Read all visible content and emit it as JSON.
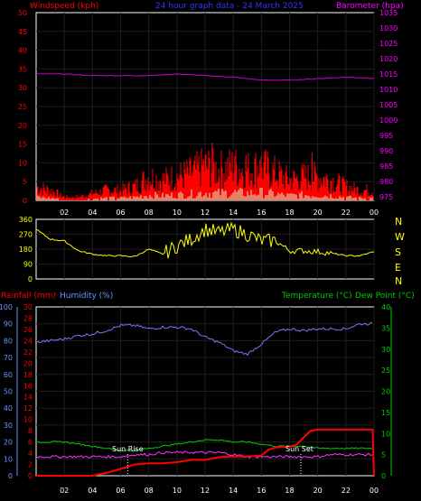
{
  "header": {
    "left_label": "Windspeed (kph)",
    "center_title": "24 hour graph data - 24 March 2025",
    "right_label": "Barometer (hpa)"
  },
  "colors": {
    "wind": "#ff0000",
    "gust": "#ff0000",
    "avg_wind": "#ccffcc",
    "barometer": "#cc00cc",
    "direction": "#ffff00",
    "humidity": "#7777ff",
    "rain": "#ff0000",
    "temperature": "#00cc00",
    "dewpoint": "#ff33ff",
    "axis_left": "#ff0000",
    "axis_right": "#ff00ff",
    "axis_grn": "#00cc00",
    "axis_blue": "#6699ff",
    "title_blue": "#3333ff",
    "grid": "#1e1e1e",
    "frame": "#ffffff"
  },
  "time_ticks": [
    "02",
    "04",
    "06",
    "08",
    "10",
    "12",
    "14",
    "16",
    "18",
    "20",
    "22",
    "00"
  ],
  "wind_panel": {
    "speed_ticks": [
      "0",
      "5",
      "10",
      "15",
      "20",
      "25",
      "30",
      "35",
      "40",
      "45",
      "50"
    ],
    "baro_ticks": [
      "975",
      "980",
      "985",
      "990",
      "995",
      "1000",
      "1005",
      "1010",
      "1015",
      "1020",
      "1025",
      "1030",
      "1035"
    ]
  },
  "dir_panel": {
    "deg_ticks": [
      "0",
      "90",
      "180",
      "270",
      "360"
    ],
    "compass": [
      "N",
      "W",
      "S",
      "E",
      "N"
    ]
  },
  "bottom_panel": {
    "left_labels": {
      "rain": "Rainfall (mm)",
      "humidity": "Humidity (%)"
    },
    "right_labels": {
      "temp": "Temperature (°C)",
      "dew": "Dew Point (°C)"
    },
    "humidity_ticks": [
      "0",
      "10",
      "20",
      "30",
      "40",
      "50",
      "60",
      "70",
      "80",
      "90",
      "100"
    ],
    "rain_ticks": [
      "0",
      "2",
      "4",
      "6",
      "8",
      "10",
      "12",
      "14",
      "16",
      "18",
      "20",
      "22",
      "24",
      "26",
      "28",
      "30"
    ],
    "temp_ticks": [
      "0",
      "5",
      "10",
      "15",
      "20",
      "25",
      "30",
      "35",
      "40"
    ],
    "sun_rise_label": "Sun Rise",
    "sun_set_label": "Sun Set",
    "sun_rise_hour": 6.5,
    "sun_set_hour": 18.8
  },
  "chart_data": [
    {
      "type": "line",
      "title": "24 hour graph data - 24 March 2025",
      "series": [
        {
          "name": "Windspeed (kph)",
          "x": [
            0,
            1,
            2,
            3,
            4,
            5,
            6,
            7,
            8,
            9,
            10,
            11,
            12,
            13,
            14,
            15,
            16,
            17,
            18,
            19,
            20,
            21,
            22,
            23,
            24
          ],
          "values": [
            4,
            3,
            1,
            1,
            2,
            3,
            3,
            4,
            7,
            6,
            7,
            8,
            10,
            9,
            10,
            9,
            10,
            8,
            6,
            7,
            7,
            6,
            4,
            3,
            3
          ]
        },
        {
          "name": "Barometer (hpa)",
          "x": [
            0,
            2,
            4,
            6,
            8,
            10,
            12,
            14,
            16,
            18,
            20,
            22,
            24
          ],
          "values": [
            1015,
            1015,
            1014.5,
            1014.5,
            1014.5,
            1015,
            1014.5,
            1014,
            1013,
            1013,
            1013.5,
            1014,
            1013.5
          ]
        }
      ],
      "ylim": [
        0,
        50
      ],
      "y2lim": [
        975,
        1035
      ]
    },
    {
      "type": "scatter",
      "series": [
        {
          "name": "Wind direction",
          "x": [
            0,
            1,
            2,
            3,
            4,
            5,
            6,
            7,
            8,
            9,
            10,
            11,
            12,
            13,
            14,
            15,
            16,
            17,
            18,
            19,
            20,
            21,
            22,
            23,
            24
          ],
          "values": [
            300,
            240,
            230,
            170,
            150,
            140,
            140,
            135,
            180,
            150,
            200,
            240,
            300,
            280,
            300,
            270,
            230,
            230,
            170,
            170,
            165,
            155,
            140,
            140,
            165
          ]
        }
      ],
      "ylim": [
        0,
        360
      ]
    },
    {
      "type": "line",
      "series": [
        {
          "name": "Humidity (%)",
          "x": [
            0,
            1,
            2,
            3,
            4,
            5,
            6,
            7,
            8,
            9,
            10,
            11,
            12,
            13,
            14,
            15,
            16,
            17,
            18,
            19,
            20,
            21,
            22,
            23,
            24
          ],
          "values": [
            79,
            80,
            81,
            83,
            84,
            86,
            89,
            89,
            87,
            88,
            88,
            87,
            82,
            79,
            74,
            72,
            78,
            85,
            87,
            86,
            87,
            87,
            87,
            90,
            90
          ]
        },
        {
          "name": "Rainfall (mm)",
          "x": [
            0,
            4,
            5,
            6,
            7,
            8,
            9,
            10,
            11,
            12,
            13,
            14,
            15,
            16,
            16.5,
            17,
            18,
            18.5,
            19,
            19.5,
            20,
            21,
            22,
            23,
            23.9,
            24
          ],
          "values": [
            0,
            0,
            0.5,
            1.2,
            2,
            2.2,
            2.2,
            2.4,
            2.8,
            2.8,
            3.3,
            3.4,
            3.4,
            3.6,
            4.6,
            5,
            5.2,
            5.5,
            6.8,
            8,
            8.2,
            8.2,
            8.2,
            8.2,
            8.2,
            0
          ]
        },
        {
          "name": "Temperature (°C)",
          "x": [
            0,
            1,
            2,
            3,
            4,
            5,
            6,
            7,
            8,
            9,
            10,
            11,
            12,
            13,
            14,
            15,
            16,
            17,
            18,
            19,
            20,
            21,
            22,
            23,
            24
          ],
          "values": [
            8,
            8,
            8,
            7.5,
            7,
            6.5,
            6,
            6,
            6.5,
            7,
            7.5,
            8,
            8.5,
            8.5,
            8,
            8,
            7.5,
            7,
            7,
            7,
            6.5,
            6.5,
            6.5,
            6.5,
            6.5
          ]
        },
        {
          "name": "Dew Point (°C)",
          "x": [
            0,
            1,
            2,
            3,
            4,
            5,
            6,
            7,
            8,
            9,
            10,
            11,
            12,
            13,
            14,
            15,
            16,
            17,
            18,
            19,
            20,
            21,
            22,
            23,
            24
          ],
          "values": [
            4.5,
            4.5,
            4.5,
            4.5,
            4.5,
            4.5,
            4.5,
            5,
            5,
            5.5,
            5.5,
            5.5,
            5.5,
            5.5,
            5,
            4.5,
            4.5,
            4.5,
            4.5,
            4.5,
            4.5,
            5,
            5,
            5,
            5
          ]
        }
      ],
      "ylim": [
        0,
        100
      ]
    }
  ]
}
